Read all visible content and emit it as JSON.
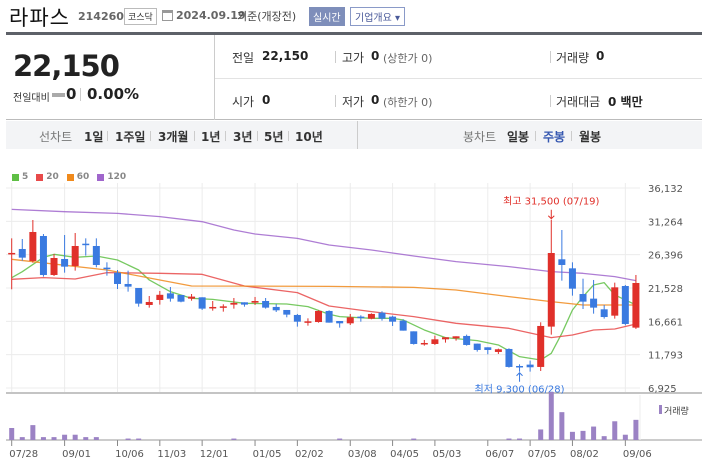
{
  "header": {
    "name": "라파스",
    "code": "214260",
    "market": "코스닥",
    "date": "2024.09.19",
    "basis": "기준(개장전)",
    "realtime": "실시간",
    "overview": "기업개요 ▾"
  },
  "quote": {
    "price": "22,150",
    "change_label": "전일대비",
    "change": "0",
    "change_pct": "0.00%",
    "prev_label": "전일",
    "prev": "22,150",
    "high_label": "고가",
    "high": "0",
    "high_sub": "(상한가 0)",
    "volume_label": "거래량",
    "volume": "0",
    "open_label": "시가",
    "open": "0",
    "low_label": "저가",
    "low": "0",
    "low_sub": "(하한가 0)",
    "amount_label": "거래대금",
    "amount": "0 백만"
  },
  "tabs": {
    "line_label": "선차트",
    "line": [
      "1일",
      "1주일",
      "3개월",
      "1년",
      "3년",
      "5년",
      "10년"
    ],
    "candle_label": "봉차트",
    "candle": [
      "일봉",
      "주봉",
      "월봉"
    ],
    "candle_active": 1
  },
  "chart_data": {
    "type": "candlestick",
    "legend": [
      {
        "name": "5",
        "color": "#5fbf45"
      },
      {
        "name": "20",
        "color": "#e84a4a"
      },
      {
        "name": "60",
        "color": "#f08a1c"
      },
      {
        "name": "120",
        "color": "#a066cc"
      }
    ],
    "up_color": "#e0302a",
    "down_color": "#3a7ae0",
    "y_ticks": [
      "36,132",
      "31,264",
      "26,396",
      "21,528",
      "16,661",
      "11,793",
      "6,925"
    ],
    "ylim": [
      6925,
      36132
    ],
    "x_ticks": [
      {
        "i": 0,
        "label": "07/28"
      },
      {
        "i": 5,
        "label": "09/01"
      },
      {
        "i": 10,
        "label": "10/06"
      },
      {
        "i": 14,
        "label": "11/03"
      },
      {
        "i": 18,
        "label": "12/01"
      },
      {
        "i": 23,
        "label": "01/05"
      },
      {
        "i": 27,
        "label": "02/02"
      },
      {
        "i": 32,
        "label": "03/08"
      },
      {
        "i": 36,
        "label": "04/05"
      },
      {
        "i": 40,
        "label": "05/03"
      },
      {
        "i": 45,
        "label": "06/07"
      },
      {
        "i": 49,
        "label": "07/05"
      },
      {
        "i": 53,
        "label": "08/02"
      },
      {
        "i": 58,
        "label": "09/06"
      }
    ],
    "ohlc": [
      [
        26600,
        28780,
        21340,
        26650
      ],
      [
        27225,
        28685,
        25520,
        25960
      ],
      [
        25474,
        31460,
        25230,
        29708
      ],
      [
        29124,
        29415,
        23186,
        23430
      ],
      [
        23430,
        26496,
        23284,
        25910
      ],
      [
        25766,
        29270,
        23770,
        24646
      ],
      [
        24743,
        29562,
        24062,
        27663
      ],
      [
        28000,
        28780,
        26250,
        27800
      ],
      [
        27663,
        28780,
        24550,
        24890
      ],
      [
        24500,
        25280,
        23330,
        24300
      ],
      [
        23770,
        24160,
        21385,
        22115
      ],
      [
        22115,
        24062,
        20995,
        21725
      ],
      [
        21530,
        21530,
        18800,
        19244
      ],
      [
        19050,
        20360,
        18660,
        19487
      ],
      [
        19780,
        21090,
        19100,
        20535
      ],
      [
        20750,
        21675,
        19535,
        19975
      ],
      [
        20510,
        20510,
        19440,
        19535
      ],
      [
        19975,
        20650,
        19680,
        20270
      ],
      [
        20170,
        20170,
        18320,
        18515
      ],
      [
        18560,
        19630,
        18220,
        18760
      ],
      [
        18800,
        19150,
        18075,
        18850
      ],
      [
        19100,
        20070,
        18515,
        19340
      ],
      [
        19440,
        19440,
        18800,
        19100
      ],
      [
        19390,
        20220,
        19050,
        19630
      ],
      [
        19630,
        20070,
        18515,
        18660
      ],
      [
        18760,
        19200,
        18025,
        18270
      ],
      [
        18320,
        18320,
        17250,
        17640
      ],
      [
        17590,
        17740,
        15885,
        16610
      ],
      [
        16610,
        17100,
        16030,
        16660
      ],
      [
        16560,
        18270,
        16470,
        18175
      ],
      [
        18175,
        18270,
        16470,
        16470
      ],
      [
        16710,
        16710,
        15740,
        16370
      ],
      [
        16370,
        17740,
        16130,
        17250
      ],
      [
        17350,
        17540,
        16610,
        17250
      ],
      [
        17055,
        17830,
        16960,
        17740
      ],
      [
        17930,
        18125,
        16760,
        17055
      ],
      [
        17350,
        17490,
        15985,
        16610
      ],
      [
        16760,
        16960,
        15300,
        15300
      ],
      [
        15200,
        15200,
        13260,
        13355
      ],
      [
        13450,
        13940,
        13110,
        13500
      ],
      [
        13355,
        14570,
        13210,
        14035
      ],
      [
        14035,
        14330,
        13550,
        14330
      ],
      [
        14180,
        14475,
        13840,
        14475
      ],
      [
        14525,
        14720,
        13110,
        13210
      ],
      [
        13405,
        13405,
        12235,
        12480
      ],
      [
        12870,
        12870,
        11845,
        12480
      ],
      [
        12190,
        12675,
        11895,
        12580
      ],
      [
        12625,
        12720,
        9900,
        10000
      ],
      [
        10140,
        10385,
        9300,
        10000
      ],
      [
        10340,
        10920,
        9315,
        9950
      ],
      [
        10000,
        16520,
        9410,
        15985
      ],
      [
        15890,
        31500,
        14720,
        26640
      ],
      [
        25720,
        30000,
        22600,
        24890
      ],
      [
        24400,
        25280,
        20410,
        21430
      ],
      [
        20650,
        22890,
        18460,
        19535
      ],
      [
        19975,
        22700,
        17780,
        18660
      ],
      [
        18415,
        19050,
        17055,
        17290
      ],
      [
        17490,
        22310,
        17055,
        21625
      ],
      [
        21820,
        21970,
        16080,
        16275
      ],
      [
        15740,
        23430,
        15550,
        22260
      ]
    ],
    "ma": {
      "5": [
        [
          0,
          23040
        ],
        [
          1,
          23916
        ],
        [
          3,
          26010
        ],
        [
          4,
          26446
        ],
        [
          6,
          26010
        ],
        [
          8,
          26200
        ],
        [
          10,
          25620
        ],
        [
          12,
          24160
        ],
        [
          13,
          22700
        ],
        [
          15,
          20995
        ],
        [
          17,
          20020
        ],
        [
          19,
          19870
        ],
        [
          22,
          19290
        ],
        [
          26,
          19190
        ],
        [
          28,
          18805
        ],
        [
          30,
          17690
        ],
        [
          31,
          17345
        ],
        [
          34,
          17100
        ],
        [
          36,
          17100
        ],
        [
          37,
          16860
        ],
        [
          39,
          15400
        ],
        [
          41,
          14280
        ],
        [
          44,
          13840
        ],
        [
          46,
          13210
        ],
        [
          48,
          11505
        ],
        [
          50,
          11020
        ],
        [
          51,
          11990
        ],
        [
          52,
          14910
        ],
        [
          53,
          18320
        ],
        [
          54,
          20265
        ],
        [
          55,
          21970
        ],
        [
          56,
          22310
        ],
        [
          57,
          20510
        ],
        [
          58,
          19780
        ],
        [
          59,
          19050
        ]
      ],
      "20": [
        [
          0,
          22797
        ],
        [
          3,
          23040
        ],
        [
          6,
          22845
        ],
        [
          9,
          23770
        ],
        [
          14,
          23670
        ],
        [
          18,
          23525
        ],
        [
          22,
          21820
        ],
        [
          27,
          20850
        ],
        [
          30,
          18900
        ],
        [
          34,
          18075
        ],
        [
          38,
          17345
        ],
        [
          42,
          16370
        ],
        [
          47,
          15640
        ],
        [
          51,
          14280
        ],
        [
          53,
          14670
        ],
        [
          55,
          15400
        ],
        [
          57,
          15545
        ],
        [
          59,
          16275
        ]
      ],
      "60": [
        [
          0,
          25715
        ],
        [
          9,
          24160
        ],
        [
          14,
          22700
        ],
        [
          17,
          21820
        ],
        [
          30,
          21770
        ],
        [
          38,
          21625
        ],
        [
          42,
          21235
        ],
        [
          47,
          20265
        ],
        [
          51,
          19535
        ],
        [
          54,
          19050
        ],
        [
          59,
          19050
        ]
      ],
      "120": [
        [
          0,
          33016
        ],
        [
          5,
          32676
        ],
        [
          10,
          32430
        ],
        [
          14,
          31946
        ],
        [
          18,
          31215
        ],
        [
          21,
          30000
        ],
        [
          23,
          29415
        ],
        [
          27,
          28780
        ],
        [
          30,
          27810
        ],
        [
          34,
          27080
        ],
        [
          38,
          26200
        ],
        [
          42,
          25380
        ],
        [
          47,
          24650
        ],
        [
          51,
          23915
        ],
        [
          54,
          23670
        ],
        [
          57,
          23186
        ],
        [
          59,
          22600
        ]
      ]
    },
    "annotations": {
      "high": "최고 31,500 (07/19)",
      "high_index": 51,
      "high_value": 31500,
      "low": "최저 9,300 (06/28)",
      "low_index": 48,
      "low_value": 9300
    },
    "volume_label": "거래량",
    "volume_relative_pct": [
      {
        "i": 0,
        "v": 25
      },
      {
        "i": 1,
        "v": 6
      },
      {
        "i": 2,
        "v": 31
      },
      {
        "i": 3,
        "v": 6
      },
      {
        "i": 4,
        "v": 6
      },
      {
        "i": 5,
        "v": 11
      },
      {
        "i": 6,
        "v": 11
      },
      {
        "i": 7,
        "v": 6
      },
      {
        "i": 8,
        "v": 6
      },
      {
        "i": 11,
        "v": 3
      },
      {
        "i": 12,
        "v": 3
      },
      {
        "i": 21,
        "v": 3
      },
      {
        "i": 31,
        "v": 3
      },
      {
        "i": 38,
        "v": 3
      },
      {
        "i": 47,
        "v": 3
      },
      {
        "i": 48,
        "v": 3
      },
      {
        "i": 50,
        "v": 22
      },
      {
        "i": 51,
        "v": 100
      },
      {
        "i": 52,
        "v": 58
      },
      {
        "i": 53,
        "v": 17
      },
      {
        "i": 54,
        "v": 19
      },
      {
        "i": 55,
        "v": 28
      },
      {
        "i": 56,
        "v": 8
      },
      {
        "i": 57,
        "v": 39
      },
      {
        "i": 58,
        "v": 11
      },
      {
        "i": 59,
        "v": 42
      }
    ]
  }
}
